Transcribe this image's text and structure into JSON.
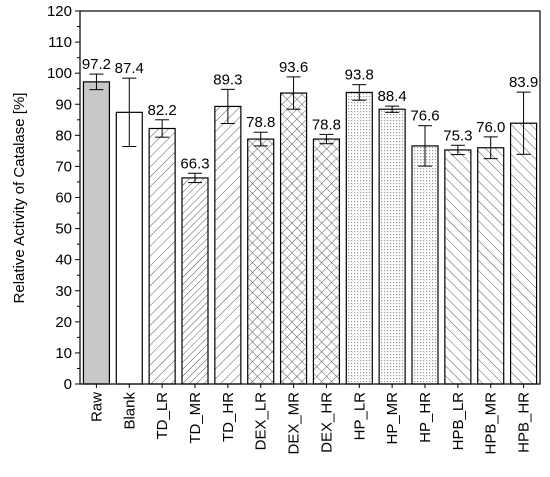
{
  "chart_data": {
    "type": "bar",
    "ylabel": "Relative Activity of Catalase [%]",
    "xlabel": "",
    "ylim": [
      0,
      120
    ],
    "yticks": [
      0,
      10,
      20,
      30,
      40,
      50,
      60,
      70,
      80,
      90,
      100,
      110,
      120
    ],
    "grid": false,
    "categories": [
      "Raw",
      "Blank",
      "TD_LR",
      "TD_MR",
      "TD_HR",
      "DEX_LR",
      "DEX_MR",
      "DEX_HR",
      "HP_LR",
      "HP_MR",
      "HP_HR",
      "HPB_LR",
      "HPB_MR",
      "HPB_HR"
    ],
    "values": [
      97.2,
      87.4,
      82.2,
      66.3,
      89.3,
      78.8,
      93.6,
      78.8,
      93.8,
      88.4,
      76.6,
      75.3,
      76.0,
      83.9
    ],
    "value_labels": [
      "97.2",
      "87.4",
      "82.2",
      "66.3",
      "89.3",
      "78.8",
      "93.6",
      "78.8",
      "93.8",
      "88.4",
      "76.6",
      "75.3",
      "76.0",
      "83.9"
    ],
    "errors": [
      2.5,
      11.0,
      2.8,
      1.5,
      5.5,
      2.2,
      5.2,
      1.5,
      2.5,
      1.0,
      6.5,
      1.5,
      3.5,
      10.0
    ],
    "patterns": [
      "solid-gray",
      "none",
      "diag-right",
      "diag-right-dense",
      "diag-right",
      "crosshatch",
      "crosshatch",
      "crosshatch",
      "dots",
      "dots",
      "dots",
      "diag-left",
      "diag-left",
      "diag-left"
    ],
    "colors": {
      "raw_fill": "#c8c8c8",
      "bar_stroke": "#000000",
      "pattern_line": "#5a5a5a",
      "dot_fill": "#e4e4e4"
    }
  }
}
